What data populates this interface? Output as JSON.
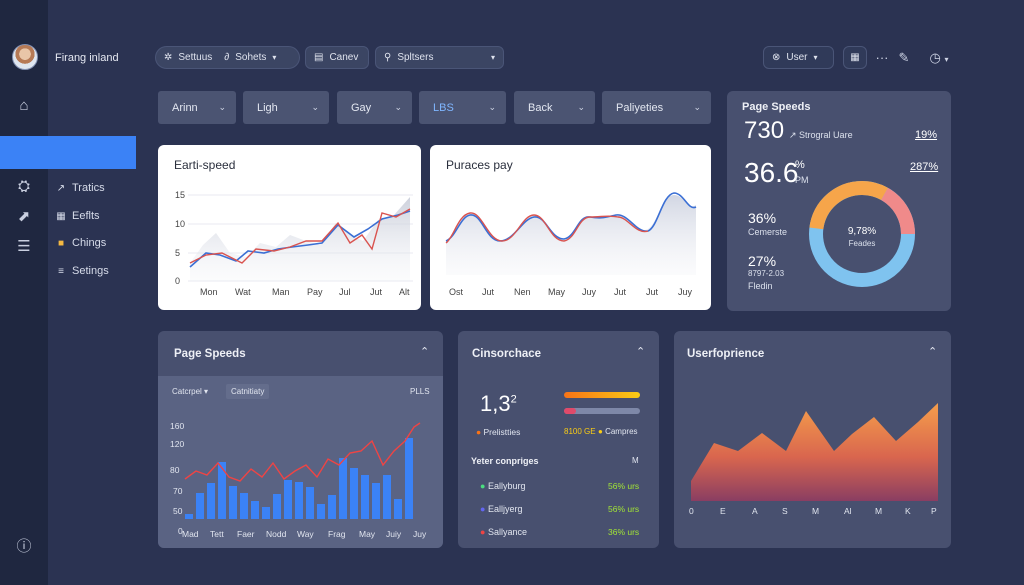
{
  "brand": {
    "name": "Firang inland"
  },
  "sidebar": {
    "items": [
      {
        "label": "Tratics",
        "icon": "wrench-icon"
      },
      {
        "label": "Eeflts",
        "icon": "grid-icon"
      },
      {
        "label": "Chings",
        "icon": "folder-icon"
      },
      {
        "label": "Setings",
        "icon": "sliders-icon"
      }
    ]
  },
  "topbar": {
    "settings_label": "Settuus",
    "sohets_label": "Sohets",
    "canev_label": "Canev",
    "search_placeholder": "Spltsers",
    "user_label": "User"
  },
  "filters": [
    {
      "label": "Arinn"
    },
    {
      "label": "Ligh"
    },
    {
      "label": "Gay"
    },
    {
      "label": "LBS"
    },
    {
      "label": "Back"
    },
    {
      "label": "Paliyeties"
    }
  ],
  "earth_speed": {
    "title": "Earti-speed",
    "y_ticks": [
      "15",
      "10",
      "5",
      "0"
    ],
    "x_labels": [
      "Mon",
      "Wat",
      "Man",
      "Pay",
      "Jul",
      "Jut",
      "Alt"
    ]
  },
  "purchases": {
    "title": "Puraces pay",
    "x_labels": [
      "Ost",
      "Jut",
      "Nen",
      "May",
      "Juy",
      "Jut",
      "Jut",
      "Juy"
    ]
  },
  "page_speeds_top": {
    "title": "Page Speeds",
    "metric1_value": "730",
    "metric1_sub": "Strogral Uare",
    "metric1_pct": "19%",
    "metric2_value": "36.6",
    "metric2_pct_sym": "%",
    "metric2_unit": "PM",
    "metric2_pct": "287%",
    "stat1_value": "36%",
    "stat1_label": "Cemerste",
    "stat2_value": "27%",
    "stat2_sub": "8797-2.03",
    "stat2_label": "Fledin",
    "donut_value": "9,78%",
    "donut_label": "Feades",
    "donut_colors": [
      "#7fc3ef",
      "#f6a54a",
      "#f08a8a"
    ]
  },
  "page_speeds_bottom": {
    "title": "Page Speeds",
    "select1": "Catcrpel",
    "select2": "Catnitiaty",
    "corner_label": "PLLS",
    "y_ticks": [
      "160",
      "120",
      "80",
      "70",
      "50",
      "0"
    ],
    "x_labels": [
      "Mad",
      "Tett",
      "Faer",
      "Nodd",
      "Way",
      "Frag",
      "May",
      "Juiy",
      "Juy"
    ]
  },
  "conversions": {
    "title": "Cinsorchace",
    "value": "1,3",
    "value_sup": "2",
    "legend1": "Prelistties",
    "legend2_value": "8100 GE",
    "legend3": "Campres",
    "section_title": "Yeter conpriges",
    "section_marker": "M",
    "rows": [
      {
        "name": "Eallyburg",
        "value": "56% urs",
        "color": "#4ade80"
      },
      {
        "name": "Ealljyerg",
        "value": "56% urs",
        "color": "#6366f1"
      },
      {
        "name": "Sallyance",
        "value": "36% urs",
        "color": "#ef4444"
      }
    ]
  },
  "user_experience": {
    "title": "Userfoprience",
    "x_labels": [
      "0",
      "E",
      "A",
      "S",
      "M",
      "Al",
      "M",
      "K",
      "P"
    ]
  }
}
